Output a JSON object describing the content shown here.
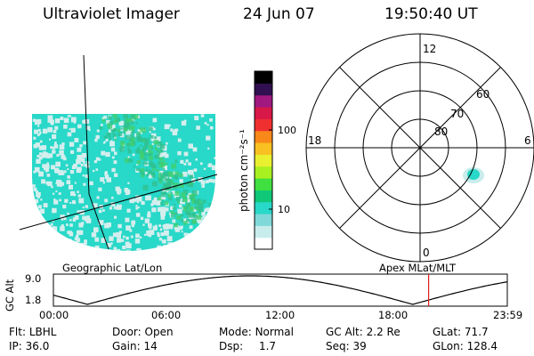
{
  "header": {
    "instrument": "Ultraviolet Imager",
    "date": "24 Jun 07",
    "time": "19:50:40 UT"
  },
  "colorbar": {
    "unit_label": "photon cm⁻²s⁻¹",
    "ticks": [
      {
        "label": "100",
        "value": 100
      },
      {
        "label": "10",
        "value": 10
      }
    ],
    "colors": [
      "#ffffff",
      "#c8ecec",
      "#80d8d8",
      "#28d8c8",
      "#10c878",
      "#40e040",
      "#a8f020",
      "#e8f030",
      "#f8c020",
      "#f88818",
      "#f03030",
      "#d81848",
      "#a01880",
      "#301050",
      "#000000"
    ]
  },
  "geo_image": {
    "label": "Geographic Lat/Lon",
    "base_color": "#28d8c8",
    "speckle_color": "#d4eeee",
    "band_color": "#30c090",
    "accent_color": "#40d070"
  },
  "polar_plot": {
    "label": "Apex MLat/MLT",
    "mlt_labels": {
      "top": "12",
      "right": "6",
      "bottom": "0",
      "left": "18"
    },
    "lat_rings": [
      {
        "label": "80"
      },
      {
        "label": "70"
      },
      {
        "label": "60"
      }
    ],
    "blob_color": "#28d8c8",
    "blob_edge_color": "#c8ecec"
  },
  "altitude_plot": {
    "ylabel": "GC Alt",
    "y_ticks": [
      "9.0",
      "1.8"
    ],
    "x_ticks": [
      "00:00",
      "06:00",
      "12:00",
      "18:00",
      "23:59"
    ],
    "current_time_hours": 19.84,
    "marker_color": "#e02020"
  },
  "params": {
    "flt_label": "Flt:",
    "flt_value": "LBHL",
    "ip_label": "IP:",
    "ip_value": "36.0",
    "door_label": "Door:",
    "door_value": "Open",
    "gain_label": "Gain:",
    "gain_value": "14",
    "mode_label": "Mode:",
    "mode_value": "Normal",
    "dsp_label": "Dsp:",
    "dsp_value": "1.7",
    "gcalt_label": "GC Alt:",
    "gcalt_value": "2.2 Re",
    "seq_label": "Seq:",
    "seq_value": "39",
    "glat_label": "GLat:",
    "glat_value": "71.7",
    "glon_label": "GLon:",
    "glon_value": "128.4"
  }
}
